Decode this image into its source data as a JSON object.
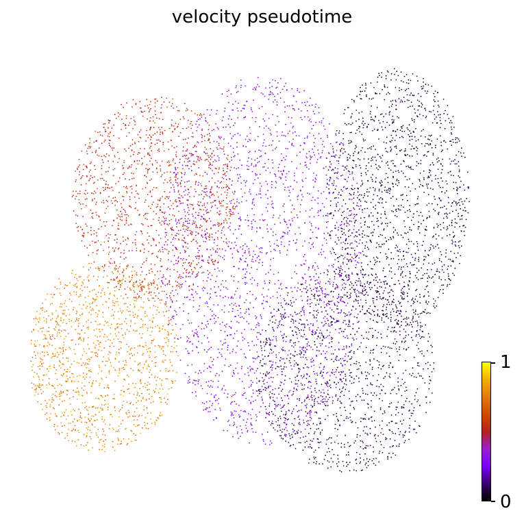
{
  "chart_data": {
    "type": "scatter",
    "title": "velocity pseudotime",
    "xlabel": "",
    "ylabel": "",
    "axes_visible": false,
    "grid": false,
    "colormap": "gnuplot",
    "colormap_stops": [
      "#000000",
      "#3a0070",
      "#7a00ff",
      "#9a1fd0",
      "#b51f1f",
      "#d24a00",
      "#e2780a",
      "#f0b000",
      "#ffff00"
    ],
    "colorbar": {
      "min_label": "0",
      "max_label": "1",
      "range": [
        0,
        1
      ],
      "placement": "bottom-right"
    },
    "clusters": [
      {
        "region": "right",
        "pseudotime_mean": 0.06,
        "pseudotime_sd": 0.03
      },
      {
        "region": "lower-middle-right",
        "pseudotime_mean": 0.08,
        "pseudotime_sd": 0.03
      },
      {
        "region": "center",
        "pseudotime_mean": 0.32,
        "pseudotime_sd": 0.04
      },
      {
        "region": "upper-left",
        "pseudotime_mean": 0.55,
        "pseudotime_sd": 0.05
      },
      {
        "region": "lower-left",
        "pseudotime_mean": 0.78,
        "pseudotime_sd": 0.05
      }
    ]
  }
}
